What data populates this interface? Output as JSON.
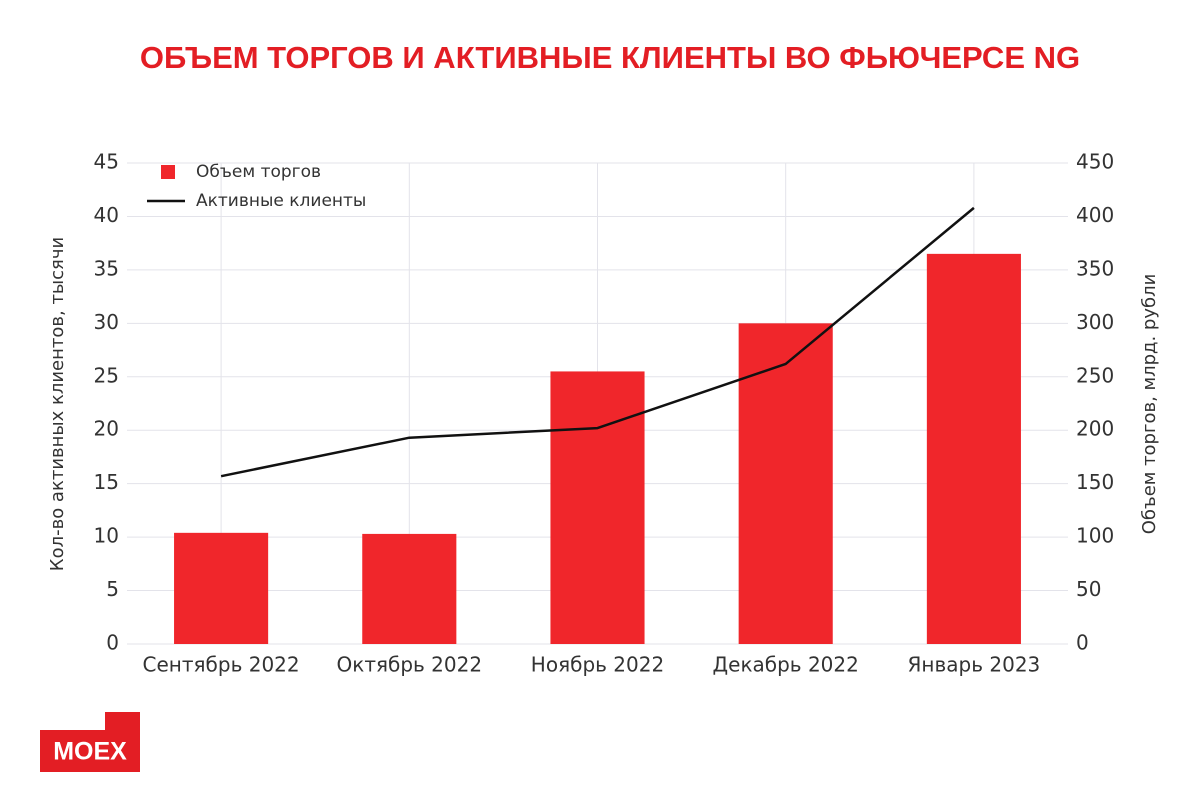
{
  "chart_data": {
    "type": "combo",
    "title": "ОБЪЕМ ТОРГОВ И АКТИВНЫЕ КЛИЕНТЫ ВО ФЬЮЧЕРСЕ NG",
    "y_label": "Кол-во активных клиентов, тысячи",
    "y2_label": "Объем торгов, млрд. рубли",
    "logo": "MOEX",
    "categories": [
      "Сентябрь 2022",
      "Октябрь 2022",
      "Ноябрь 2022",
      "Декабрь 2022",
      "Январь 2023"
    ],
    "series": [
      {
        "name": "Объем торгов",
        "type": "bar",
        "axis": "y2",
        "color": "#f0262b",
        "values": [
          104,
          103,
          255,
          300,
          365
        ]
      },
      {
        "name": "Активные клиенты",
        "type": "line",
        "axis": "y",
        "color": "#111111",
        "values": [
          15.7,
          19.3,
          20.2,
          26.2,
          40.8
        ]
      }
    ],
    "ylim": [
      0,
      45
    ],
    "yticks": [
      0,
      5,
      10,
      15,
      20,
      25,
      30,
      35,
      40,
      45
    ],
    "y2lim": [
      0,
      450
    ],
    "y2ticks": [
      0,
      50,
      100,
      150,
      200,
      250,
      300,
      350,
      400,
      450
    ],
    "grid": true,
    "legend": "top-left"
  }
}
